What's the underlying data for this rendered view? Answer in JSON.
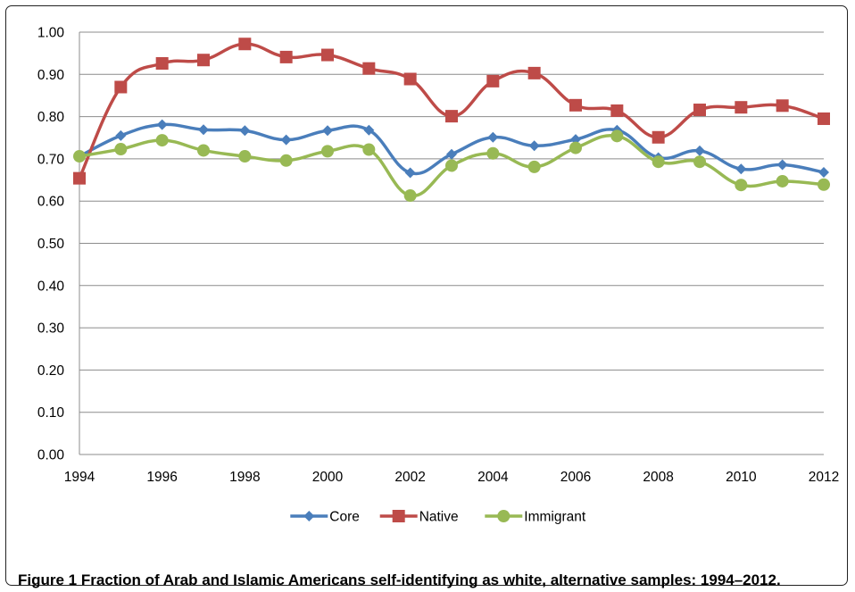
{
  "chart_data": {
    "type": "line",
    "x": [
      1994,
      1995,
      1996,
      1997,
      1998,
      1999,
      2000,
      2001,
      2002,
      2003,
      2004,
      2005,
      2006,
      2007,
      2008,
      2009,
      2010,
      2011,
      2012
    ],
    "xticks": [
      "1994",
      "1996",
      "1998",
      "2000",
      "2002",
      "2004",
      "2006",
      "2008",
      "2010",
      "2012"
    ],
    "yticks": [
      "0.00",
      "0.10",
      "0.20",
      "0.30",
      "0.40",
      "0.50",
      "0.60",
      "0.70",
      "0.80",
      "0.90",
      "1.00"
    ],
    "ylim": [
      0,
      1
    ],
    "grid": true,
    "legend_position": "bottom",
    "series": [
      {
        "name": "Core",
        "color": "#4a7ebb",
        "marker": "diamond",
        "values": [
          0.706,
          0.755,
          0.781,
          0.769,
          0.767,
          0.745,
          0.767,
          0.768,
          0.667,
          0.711,
          0.751,
          0.731,
          0.746,
          0.768,
          0.703,
          0.719,
          0.676,
          0.686,
          0.668
        ]
      },
      {
        "name": "Native",
        "color": "#be4b48",
        "marker": "square",
        "values": [
          0.654,
          0.87,
          0.926,
          0.934,
          0.972,
          0.941,
          0.946,
          0.914,
          0.889,
          0.801,
          0.884,
          0.903,
          0.827,
          0.814,
          0.751,
          0.816,
          0.822,
          0.826,
          0.795
        ]
      },
      {
        "name": "Immigrant",
        "color": "#98b954",
        "marker": "circle",
        "values": [
          0.706,
          0.723,
          0.744,
          0.72,
          0.706,
          0.696,
          0.718,
          0.722,
          0.613,
          0.684,
          0.713,
          0.681,
          0.726,
          0.754,
          0.693,
          0.693,
          0.638,
          0.647,
          0.639
        ]
      }
    ]
  },
  "caption": {
    "label": "Figure 1",
    "text": "Fraction of Arab and Islamic Americans self-identifying as white, alternative samples: 1994–2012."
  }
}
